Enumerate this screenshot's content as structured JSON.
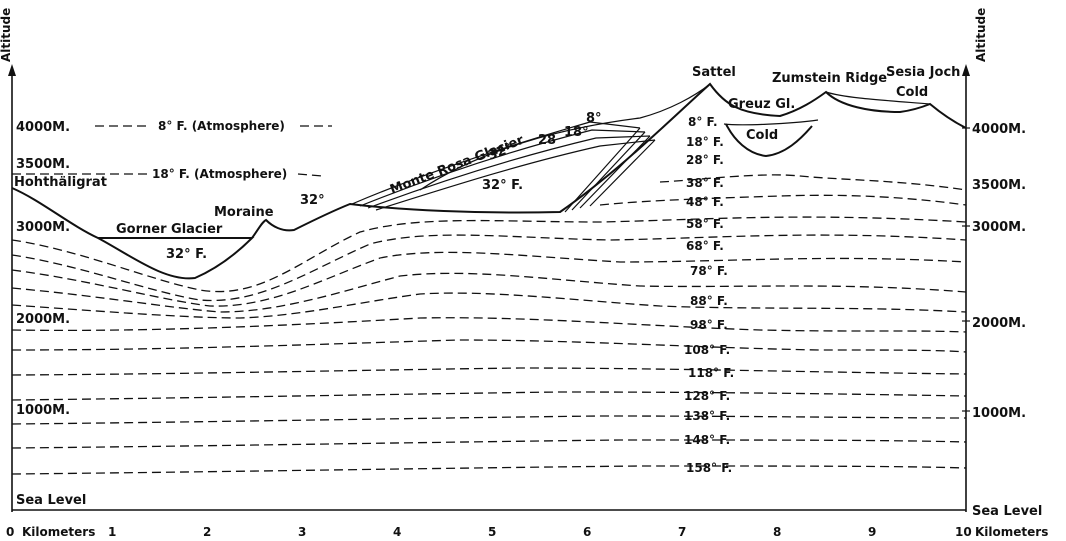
{
  "axes": {
    "left_title": "Altitude",
    "right_title": "Altitude",
    "left_altitude_labels": [
      "4000M.",
      "3500M.",
      "3000M.",
      "2000M.",
      "1000M.",
      "Sea Level"
    ],
    "right_altitude_labels": [
      "4000M.",
      "3500M.",
      "3000M.",
      "2000M.",
      "1000M.",
      "Sea Level"
    ],
    "x_ticks": [
      "0",
      "1",
      "2",
      "3",
      "4",
      "5",
      "6",
      "7",
      "8",
      "9",
      "10"
    ],
    "x_unit_left": "Kilometers",
    "x_unit_right": "Kilometers"
  },
  "features": {
    "hohthaligrat": "Hohthäligrat",
    "gorner_glacier": "Gorner Glacier",
    "moraine": "Moraine",
    "monte_rosa_glacier": "Monte Rosa Glacier",
    "sattel": "Sattel",
    "zumstein_ridge": "Zumstein Ridge",
    "sesia_joch": "Sesia Joch",
    "cold_upper": "Cold",
    "greuz_gl": "Greuz Gl.",
    "cold_lower": "Cold"
  },
  "temperatures": {
    "atmos_8": "8° F. (Atmosphere)",
    "atmos_18": "18° F. (Atmosphere)",
    "gorner_32": "32° F.",
    "moraine_32": "32°",
    "glacier_32": "32°",
    "glacier_28": "28",
    "glacier_18": "18°",
    "glacier_8": "8°",
    "interior_32": "32° F."
  },
  "isotherm_labels": [
    "8° F.",
    "18° F.",
    "28° F.",
    "38° F.",
    "48° F.",
    "58° F.",
    "68° F.",
    "78° F.",
    "88° F.",
    "98° F.",
    "108° F.",
    "118° F.",
    "128° F.",
    "138° F.",
    "148° F.",
    "158° F."
  ]
}
